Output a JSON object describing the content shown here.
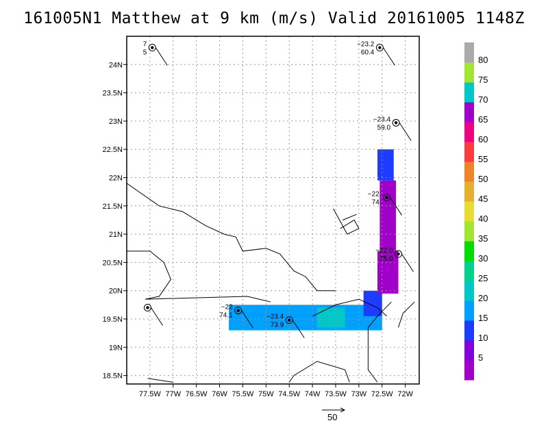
{
  "title": "161005N1 Matthew at 9 km (m/s) Valid 20161005 1148Z",
  "chart_data": {
    "type": "heatmap",
    "title": "161005N1 Matthew at 9 km (m/s) Valid 20161005 1148Z",
    "xlim": [
      -78.0,
      -71.7
    ],
    "ylim": [
      18.35,
      24.5
    ],
    "x_ticks": [
      {
        "v": -77.5,
        "label": "77.5W"
      },
      {
        "v": -77.0,
        "label": "77W"
      },
      {
        "v": -76.5,
        "label": "76.5W"
      },
      {
        "v": -76.0,
        "label": "76W"
      },
      {
        "v": -75.5,
        "label": "75.5W"
      },
      {
        "v": -75.0,
        "label": "75W"
      },
      {
        "v": -74.5,
        "label": "74.5W"
      },
      {
        "v": -74.0,
        "label": "74W"
      },
      {
        "v": -73.5,
        "label": "73.5W"
      },
      {
        "v": -73.0,
        "label": "73W"
      },
      {
        "v": -72.5,
        "label": "72.5W"
      },
      {
        "v": -72.0,
        "label": "72W"
      }
    ],
    "y_ticks": [
      {
        "v": 18.5,
        "label": "18.5N"
      },
      {
        "v": 19.0,
        "label": "19N"
      },
      {
        "v": 19.5,
        "label": "19.5N"
      },
      {
        "v": 20.0,
        "label": "20N"
      },
      {
        "v": 20.5,
        "label": "20.5N"
      },
      {
        "v": 21.0,
        "label": "21N"
      },
      {
        "v": 21.5,
        "label": "21.5N"
      },
      {
        "v": 22.0,
        "label": "22N"
      },
      {
        "v": 22.5,
        "label": "22.5N"
      },
      {
        "v": 23.0,
        "label": "23N"
      },
      {
        "v": 23.5,
        "label": "23.5N"
      },
      {
        "v": 24.0,
        "label": "24N"
      }
    ],
    "grid": true,
    "colorbar": {
      "levels": [
        {
          "label": "",
          "color": "#a000c8"
        },
        {
          "label": "5",
          "color": "#8200dc"
        },
        {
          "label": "10",
          "color": "#1e3cff"
        },
        {
          "label": "15",
          "color": "#00a0ff"
        },
        {
          "label": "20",
          "color": "#00c8c8"
        },
        {
          "label": "25",
          "color": "#00d28c"
        },
        {
          "label": "30",
          "color": "#00dc00"
        },
        {
          "label": "35",
          "color": "#a0e632"
        },
        {
          "label": "40",
          "color": "#e6dc32"
        },
        {
          "label": "45",
          "color": "#e6af2d"
        },
        {
          "label": "50",
          "color": "#f08228"
        },
        {
          "label": "55",
          "color": "#fa3c3c"
        },
        {
          "label": "60",
          "color": "#f00082"
        },
        {
          "label": "65",
          "color": "#a000c8"
        },
        {
          "label": "70",
          "color": "#00c8c8"
        },
        {
          "label": "75",
          "color": "#a0e632"
        },
        {
          "label": "80",
          "color": "#aaaaaa"
        }
      ]
    },
    "wind_swath": [
      {
        "x0": -75.8,
        "x1": -72.5,
        "y0": 19.3,
        "y1": 19.75,
        "speed": 17
      },
      {
        "x0": -73.9,
        "x1": -73.3,
        "y0": 19.35,
        "y1": 19.7,
        "speed": 22
      },
      {
        "x0": -72.9,
        "x1": -72.5,
        "y0": 19.55,
        "y1": 20.0,
        "speed": 12
      },
      {
        "x0": -72.6,
        "x1": -72.15,
        "y0": 19.95,
        "y1": 20.7,
        "speed": 67
      },
      {
        "x0": -72.55,
        "x1": -72.2,
        "y0": 20.7,
        "y1": 21.95,
        "speed": 67
      },
      {
        "x0": -72.6,
        "x1": -72.25,
        "y0": 21.95,
        "y1": 22.5,
        "speed": 12
      }
    ],
    "stations": [
      {
        "lon": -77.45,
        "lat": 24.3,
        "label_top": "7",
        "label_bottom": "5"
      },
      {
        "lon": -72.55,
        "lat": 24.3,
        "label_top": "−23.2",
        "label_bottom": "60.4"
      },
      {
        "lon": -72.2,
        "lat": 22.97,
        "label_top": "−23.4",
        "label_bottom": "59.0"
      },
      {
        "lon": -72.4,
        "lat": 21.65,
        "label_top": "−22.",
        "label_bottom": "74."
      },
      {
        "lon": -72.15,
        "lat": 20.65,
        "label_top": "−22.0",
        "label_bottom": "75.0"
      },
      {
        "lon": -75.6,
        "lat": 19.65,
        "label_top": "−22",
        "label_bottom": "74.1"
      },
      {
        "lon": -74.5,
        "lat": 19.48,
        "label_top": "−23.4",
        "label_bottom": "73.9"
      },
      {
        "lon": -77.55,
        "lat": 19.7,
        "label_top": "",
        "label_bottom": ""
      }
    ],
    "reference_vector": {
      "label": "50",
      "value_mps": 50
    },
    "coastlines": [
      [
        [
          -78.0,
          21.9
        ],
        [
          -77.3,
          21.5
        ],
        [
          -76.8,
          21.4
        ],
        [
          -76.3,
          21.15
        ],
        [
          -75.9,
          21.0
        ],
        [
          -75.65,
          20.95
        ],
        [
          -75.5,
          20.7
        ],
        [
          -75.0,
          20.75
        ],
        [
          -74.7,
          20.65
        ],
        [
          -74.4,
          20.35
        ],
        [
          -74.15,
          20.25
        ],
        [
          -73.9,
          20.0
        ],
        [
          -73.5,
          20.0
        ]
      ],
      [
        [
          -78.0,
          20.7
        ],
        [
          -77.5,
          20.7
        ],
        [
          -77.2,
          20.5
        ],
        [
          -77.05,
          20.2
        ],
        [
          -77.3,
          19.9
        ],
        [
          -77.6,
          19.85
        ],
        [
          -75.4,
          19.9
        ],
        [
          -74.9,
          19.8
        ]
      ],
      [
        [
          -72.4,
          19.55
        ],
        [
          -72.6,
          19.7
        ],
        [
          -73.0,
          19.85
        ],
        [
          -73.5,
          19.75
        ],
        [
          -74.0,
          19.55
        ]
      ],
      [
        [
          -72.3,
          19.8
        ],
        [
          -72.6,
          19.55
        ],
        [
          -72.8,
          19.35
        ],
        [
          -72.8,
          18.6
        ],
        [
          -72.6,
          18.38
        ]
      ],
      [
        [
          -71.8,
          19.8
        ],
        [
          -72.05,
          19.6
        ],
        [
          -72.15,
          19.35
        ]
      ],
      [
        [
          -73.2,
          18.38
        ],
        [
          -73.3,
          18.6
        ],
        [
          -73.9,
          18.75
        ],
        [
          -74.4,
          18.5
        ],
        [
          -74.5,
          18.38
        ]
      ],
      [
        [
          -73.55,
          21.45
        ],
        [
          -73.25,
          21.0
        ],
        [
          -73.0,
          21.1
        ],
        [
          -73.1,
          21.25
        ],
        [
          -73.4,
          21.1
        ]
      ],
      [
        [
          -73.35,
          21.25
        ],
        [
          -73.05,
          21.35
        ]
      ],
      [
        [
          -77.55,
          18.45
        ],
        [
          -77.0,
          18.38
        ]
      ]
    ]
  }
}
